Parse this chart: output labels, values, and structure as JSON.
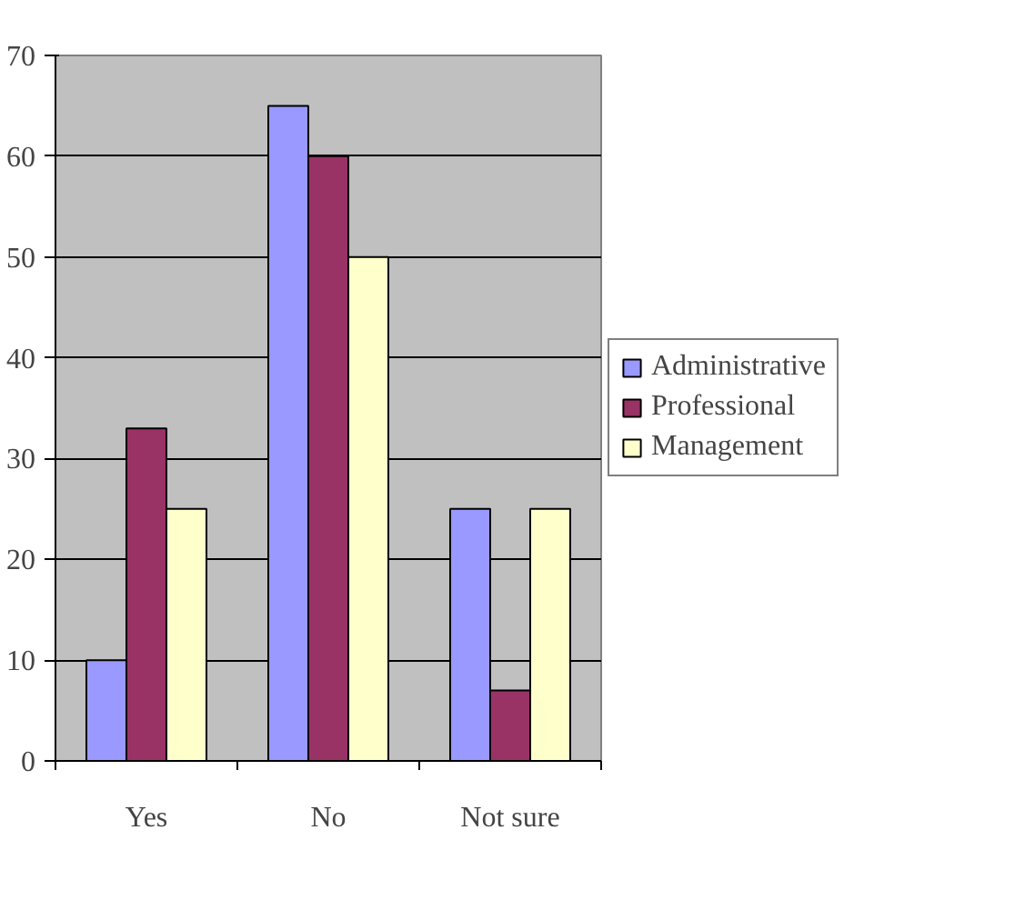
{
  "chart_data": {
    "type": "bar",
    "categories": [
      "Yes",
      "No",
      "Not sure"
    ],
    "series": [
      {
        "name": "Administrative",
        "color": "#9999ff",
        "values": [
          10,
          65,
          25
        ]
      },
      {
        "name": "Professional",
        "color": "#993366",
        "values": [
          33,
          60,
          7
        ]
      },
      {
        "name": "Management",
        "color": "#ffffcc",
        "values": [
          25,
          50,
          25
        ]
      }
    ],
    "ylim": [
      0,
      70
    ],
    "yticks": [
      0,
      10,
      20,
      30,
      40,
      50,
      60,
      70
    ],
    "grid": "y",
    "legend": "right"
  }
}
